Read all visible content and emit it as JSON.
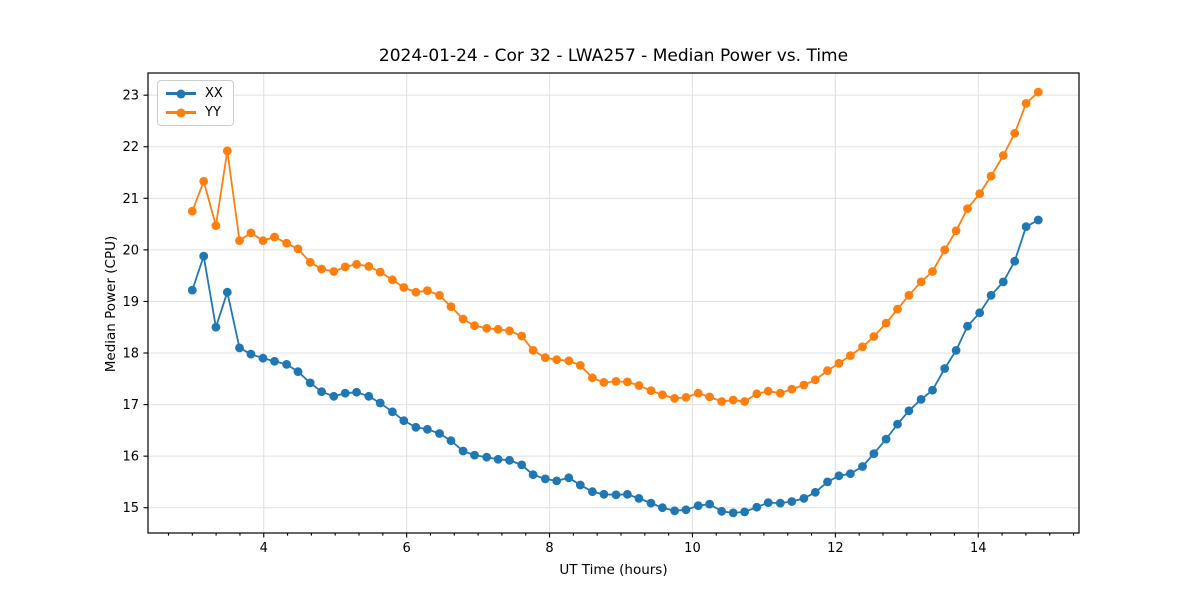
{
  "page": {
    "background": "#ffffff"
  },
  "chart_data": {
    "type": "line",
    "title": "2024-01-24 - Cor 32 - LWA257 - Median Power vs. Time",
    "xlabel": "UT Time (hours)",
    "ylabel": "Median Power (CPU)",
    "xlim": [
      2.38,
      15.41
    ],
    "ylim": [
      14.51,
      23.43
    ],
    "xticks": [
      4,
      6,
      8,
      10,
      12,
      14
    ],
    "yticks": [
      15,
      16,
      17,
      18,
      19,
      20,
      21,
      22,
      23
    ],
    "minor_xtick_interval": 0.3333,
    "grid": true,
    "grid_color": "#e0e0e0",
    "spine_color": "#000000",
    "legend": {
      "location": "upper left",
      "entries": [
        "XX",
        "YY"
      ]
    },
    "marker": "o",
    "x": [
      3.0,
      3.16,
      3.33,
      3.49,
      3.66,
      3.82,
      3.99,
      4.15,
      4.32,
      4.48,
      4.65,
      4.81,
      4.98,
      5.14,
      5.3,
      5.47,
      5.63,
      5.8,
      5.96,
      6.13,
      6.29,
      6.46,
      6.62,
      6.79,
      6.95,
      7.12,
      7.28,
      7.44,
      7.61,
      7.77,
      7.94,
      8.1,
      8.27,
      8.43,
      8.6,
      8.76,
      8.93,
      9.09,
      9.25,
      9.42,
      9.58,
      9.75,
      9.91,
      10.08,
      10.24,
      10.41,
      10.57,
      10.73,
      10.9,
      11.06,
      11.23,
      11.39,
      11.56,
      11.72,
      11.89,
      12.05,
      12.21,
      12.38,
      12.54,
      12.71,
      12.87,
      13.03,
      13.2,
      13.36,
      13.53,
      13.69,
      13.85,
      14.02,
      14.18,
      14.35,
      14.51,
      14.67,
      14.84
    ],
    "series": [
      {
        "name": "XX",
        "color": "#1f77b4",
        "values": [
          19.22,
          19.88,
          18.5,
          19.18,
          18.1,
          17.98,
          17.9,
          17.84,
          17.78,
          17.64,
          17.42,
          17.25,
          17.16,
          17.22,
          17.24,
          17.16,
          17.03,
          16.86,
          16.69,
          16.56,
          16.52,
          16.44,
          16.3,
          16.1,
          16.02,
          15.98,
          15.94,
          15.92,
          15.83,
          15.64,
          15.56,
          15.52,
          15.58,
          15.44,
          15.31,
          15.26,
          15.25,
          15.26,
          15.18,
          15.09,
          15.0,
          14.94,
          14.96,
          15.04,
          15.07,
          14.93,
          14.9,
          14.92,
          15.01,
          15.1,
          15.09,
          15.12,
          15.18,
          15.3,
          15.5,
          15.62,
          15.66,
          15.8,
          16.05,
          16.33,
          16.62,
          16.88,
          17.1,
          17.28,
          17.7,
          18.05,
          18.52,
          18.78,
          19.12,
          19.38,
          19.78,
          20.45,
          20.58
        ]
      },
      {
        "name": "YY",
        "color": "#ff7f0e",
        "values": [
          20.75,
          21.33,
          20.47,
          21.92,
          20.18,
          20.33,
          20.18,
          20.25,
          20.13,
          20.02,
          19.76,
          19.63,
          19.58,
          19.67,
          19.72,
          19.68,
          19.57,
          19.42,
          19.27,
          19.18,
          19.21,
          19.12,
          18.9,
          18.66,
          18.53,
          18.48,
          18.46,
          18.43,
          18.33,
          18.05,
          17.91,
          17.87,
          17.85,
          17.76,
          17.52,
          17.43,
          17.45,
          17.44,
          17.37,
          17.27,
          17.19,
          17.12,
          17.14,
          17.22,
          17.15,
          17.06,
          17.09,
          17.06,
          17.21,
          17.26,
          17.22,
          17.3,
          17.38,
          17.48,
          17.66,
          17.8,
          17.95,
          18.12,
          18.32,
          18.58,
          18.85,
          19.12,
          19.38,
          19.58,
          20.0,
          20.37,
          20.8,
          21.09,
          21.43,
          21.83,
          22.26,
          22.84,
          23.06
        ]
      }
    ]
  }
}
